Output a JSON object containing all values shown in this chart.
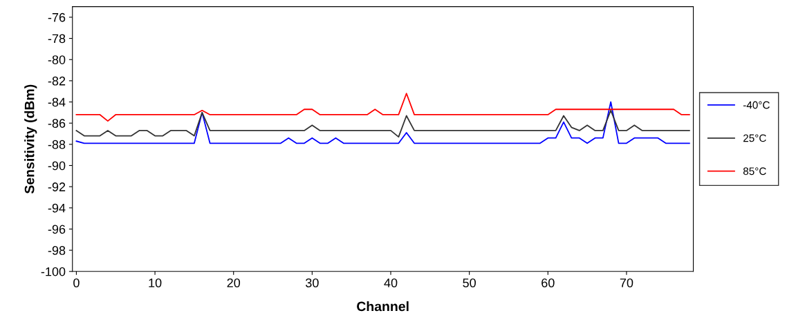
{
  "chart_data": {
    "type": "line",
    "xlabel": "Channel",
    "ylabel": "Sensitivity (dBm)",
    "x": [
      0,
      1,
      2,
      3,
      4,
      5,
      6,
      7,
      8,
      9,
      10,
      11,
      12,
      13,
      14,
      15,
      16,
      17,
      18,
      19,
      20,
      21,
      22,
      23,
      24,
      25,
      26,
      27,
      28,
      29,
      30,
      31,
      32,
      33,
      34,
      35,
      36,
      37,
      38,
      39,
      40,
      41,
      42,
      43,
      44,
      45,
      46,
      47,
      48,
      49,
      50,
      51,
      52,
      53,
      54,
      55,
      56,
      57,
      58,
      59,
      60,
      61,
      62,
      63,
      64,
      65,
      66,
      67,
      68,
      69,
      70,
      71,
      72,
      73,
      74,
      75,
      76,
      77,
      78
    ],
    "series": [
      {
        "name": "-40°C",
        "color": "#0000ff",
        "values": [
          -87.7,
          -87.9,
          -87.9,
          -87.9,
          -87.9,
          -87.9,
          -87.9,
          -87.9,
          -87.9,
          -87.9,
          -87.9,
          -87.9,
          -87.9,
          -87.9,
          -87.9,
          -87.9,
          -85.0,
          -87.9,
          -87.9,
          -87.9,
          -87.9,
          -87.9,
          -87.9,
          -87.9,
          -87.9,
          -87.9,
          -87.9,
          -87.4,
          -87.9,
          -87.9,
          -87.4,
          -87.9,
          -87.9,
          -87.4,
          -87.9,
          -87.9,
          -87.9,
          -87.9,
          -87.9,
          -87.9,
          -87.9,
          -87.9,
          -86.9,
          -87.9,
          -87.9,
          -87.9,
          -87.9,
          -87.9,
          -87.9,
          -87.9,
          -87.9,
          -87.9,
          -87.9,
          -87.9,
          -87.9,
          -87.9,
          -87.9,
          -87.9,
          -87.9,
          -87.9,
          -87.4,
          -87.4,
          -85.9,
          -87.4,
          -87.4,
          -87.9,
          -87.4,
          -87.4,
          -84.0,
          -87.9,
          -87.9,
          -87.4,
          -87.4,
          -87.4,
          -87.4,
          -87.9,
          -87.9,
          -87.9,
          -87.9
        ]
      },
      {
        "name": "25°C",
        "color": "#333333",
        "values": [
          -86.7,
          -87.2,
          -87.2,
          -87.2,
          -86.7,
          -87.2,
          -87.2,
          -87.2,
          -86.7,
          -86.7,
          -87.2,
          -87.2,
          -86.7,
          -86.7,
          -86.7,
          -87.2,
          -85.0,
          -86.7,
          -86.7,
          -86.7,
          -86.7,
          -86.7,
          -86.7,
          -86.7,
          -86.7,
          -86.7,
          -86.7,
          -86.7,
          -86.7,
          -86.7,
          -86.2,
          -86.7,
          -86.7,
          -86.7,
          -86.7,
          -86.7,
          -86.7,
          -86.7,
          -86.7,
          -86.7,
          -86.7,
          -87.3,
          -85.3,
          -86.7,
          -86.7,
          -86.7,
          -86.7,
          -86.7,
          -86.7,
          -86.7,
          -86.7,
          -86.7,
          -86.7,
          -86.7,
          -86.7,
          -86.7,
          -86.7,
          -86.7,
          -86.7,
          -86.7,
          -86.7,
          -86.7,
          -85.3,
          -86.4,
          -86.7,
          -86.2,
          -86.7,
          -86.7,
          -84.8,
          -86.7,
          -86.7,
          -86.2,
          -86.7,
          -86.7,
          -86.7,
          -86.7,
          -86.7,
          -86.7,
          -86.7
        ]
      },
      {
        "name": "85°C",
        "color": "#ff0000",
        "values": [
          -85.2,
          -85.2,
          -85.2,
          -85.2,
          -85.8,
          -85.2,
          -85.2,
          -85.2,
          -85.2,
          -85.2,
          -85.2,
          -85.2,
          -85.2,
          -85.2,
          -85.2,
          -85.2,
          -84.8,
          -85.2,
          -85.2,
          -85.2,
          -85.2,
          -85.2,
          -85.2,
          -85.2,
          -85.2,
          -85.2,
          -85.2,
          -85.2,
          -85.2,
          -84.7,
          -84.7,
          -85.2,
          -85.2,
          -85.2,
          -85.2,
          -85.2,
          -85.2,
          -85.2,
          -84.7,
          -85.2,
          -85.2,
          -85.2,
          -83.2,
          -85.2,
          -85.2,
          -85.2,
          -85.2,
          -85.2,
          -85.2,
          -85.2,
          -85.2,
          -85.2,
          -85.2,
          -85.2,
          -85.2,
          -85.2,
          -85.2,
          -85.2,
          -85.2,
          -85.2,
          -85.2,
          -84.7,
          -84.7,
          -84.7,
          -84.7,
          -84.7,
          -84.7,
          -84.7,
          -84.7,
          -84.7,
          -84.7,
          -84.7,
          -84.7,
          -84.7,
          -84.7,
          -84.7,
          -84.7,
          -85.2,
          -85.2
        ]
      }
    ],
    "xlim": [
      -0.5,
      78.5
    ],
    "xticks": [
      0,
      10,
      20,
      30,
      40,
      50,
      60,
      70
    ],
    "ylim": [
      -100,
      -75
    ],
    "yticks": [
      -76,
      -78,
      -80,
      -82,
      -84,
      -86,
      -88,
      -90,
      -92,
      -94,
      -96,
      -98,
      -100
    ],
    "grid": false,
    "legend": "right",
    "marker": "none",
    "line_style": "solid"
  }
}
